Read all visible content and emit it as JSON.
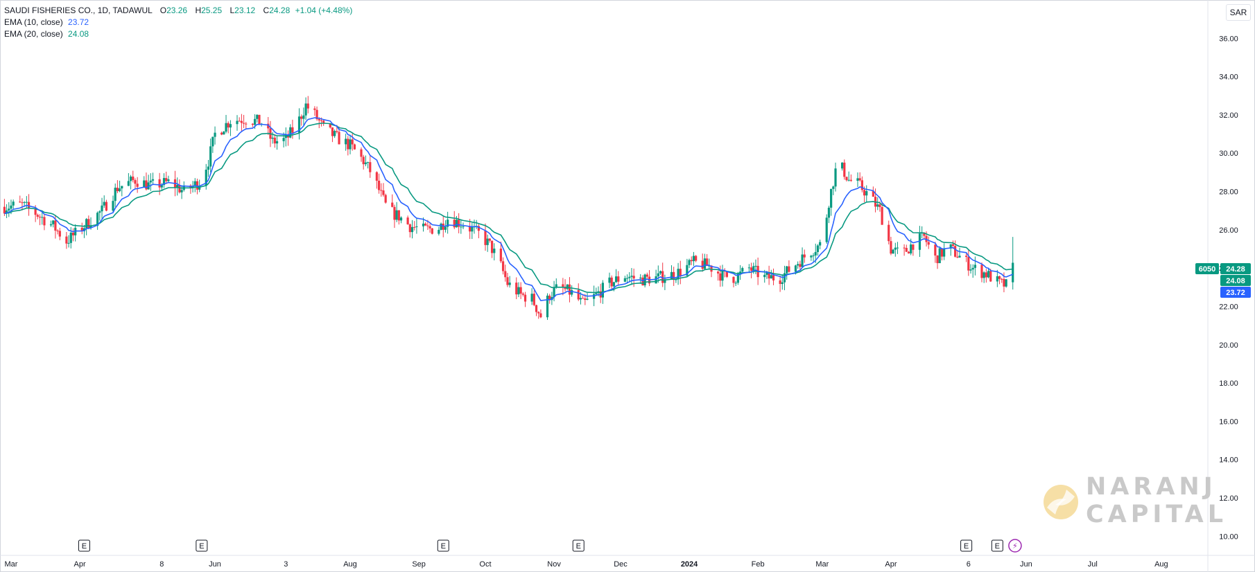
{
  "legend": {
    "symbol": "SAUDI FISHERIES CO., 1D, TADAWUL",
    "o_label": "O",
    "o_value": "23.26",
    "h_label": "H",
    "h_value": "25.25",
    "l_label": "L",
    "l_value": "23.12",
    "c_label": "C",
    "c_value": "24.28",
    "change": "+1.04 (+4.48%)",
    "ema10_label": "EMA (10, close)",
    "ema10_value": "23.72",
    "ema20_label": "EMA (20, close)",
    "ema20_value": "24.08"
  },
  "currency": "SAR",
  "price_badges": {
    "symbol_code": "6050",
    "close": "24.28",
    "ema20": "24.08",
    "ema10": "23.72"
  },
  "watermark": {
    "line1": "NARANJ",
    "line2": "CAPITAL"
  },
  "colors": {
    "up": "#089981",
    "down": "#f23645",
    "ema10": "#2962ff",
    "ema20": "#089981",
    "flash": "#9c27b0"
  },
  "chart_data": {
    "type": "candlestick",
    "series": [
      {
        "name": "EMA (10, close)"
      },
      {
        "name": "EMA (20, close)"
      }
    ],
    "ylim": [
      9,
      38
    ],
    "y_ticks": [
      "10.00",
      "12.00",
      "14.00",
      "16.00",
      "18.00",
      "20.00",
      "22.00",
      "24.00",
      "26.00",
      "28.00",
      "30.00",
      "32.00",
      "34.00",
      "36.00"
    ],
    "x_ticks": [
      "Mar",
      "Apr",
      "8",
      "Jun",
      "3",
      "Aug",
      "Sep",
      "Oct",
      "Nov",
      "Dec",
      "2024",
      "Feb",
      "Mar",
      "Apr",
      "6",
      "Jun",
      "Jul",
      "Aug"
    ],
    "x_tick_dates": [
      "2023-03-01",
      "2023-04-01",
      "2023-05-08",
      "2023-06-01",
      "2023-07-03",
      "2023-08-01",
      "2023-09-01",
      "2023-10-01",
      "2023-11-01",
      "2023-12-01",
      "2024-01-01",
      "2024-02-01",
      "2024-03-01",
      "2024-04-01",
      "2024-05-06",
      "2024-06-01",
      "2024-07-01",
      "2024-08-01"
    ],
    "x_range": [
      "2023-02-24",
      "2024-08-22"
    ],
    "earnings_markers": [
      {
        "date": "2023-04-03",
        "label": "E"
      },
      {
        "date": "2023-05-26",
        "label": "E"
      },
      {
        "date": "2023-09-12",
        "label": "E"
      },
      {
        "date": "2023-11-12",
        "label": "E"
      },
      {
        "date": "2024-05-05",
        "label": "E"
      },
      {
        "date": "2024-05-19",
        "label": "E"
      }
    ],
    "dividend_marker": {
      "date": "2024-05-27",
      "label": "⚡"
    },
    "price_path": [
      [
        "2023-02-26",
        27.2
      ],
      [
        "2023-03-06",
        27.3
      ],
      [
        "2023-03-13",
        26.8
      ],
      [
        "2023-03-20",
        26.2
      ],
      [
        "2023-03-26",
        25.4
      ],
      [
        "2023-04-03",
        26.2
      ],
      [
        "2023-04-11",
        27.0
      ],
      [
        "2023-04-18",
        28.2
      ],
      [
        "2023-04-26",
        28.6
      ],
      [
        "2023-05-03",
        28.3
      ],
      [
        "2023-05-12",
        28.5
      ],
      [
        "2023-05-18",
        28.0
      ],
      [
        "2023-05-25",
        28.5
      ],
      [
        "2023-05-29",
        29.6
      ],
      [
        "2023-06-01",
        31.0
      ],
      [
        "2023-06-08",
        31.7
      ],
      [
        "2023-06-15",
        31.8
      ],
      [
        "2023-06-22",
        31.6
      ],
      [
        "2023-06-27",
        30.6
      ],
      [
        "2023-07-03",
        30.7
      ],
      [
        "2023-07-08",
        31.5
      ],
      [
        "2023-07-12",
        32.5
      ],
      [
        "2023-07-16",
        32.0
      ],
      [
        "2023-07-20",
        31.3
      ],
      [
        "2023-07-26",
        30.8
      ],
      [
        "2023-08-01",
        30.4
      ],
      [
        "2023-08-07",
        29.6
      ],
      [
        "2023-08-11",
        28.9
      ],
      [
        "2023-08-15",
        27.8
      ],
      [
        "2023-08-18",
        27.0
      ],
      [
        "2023-08-23",
        26.7
      ],
      [
        "2023-08-28",
        26.2
      ],
      [
        "2023-09-03",
        26.0
      ],
      [
        "2023-09-10",
        26.1
      ],
      [
        "2023-09-14",
        26.6
      ],
      [
        "2023-09-21",
        26.3
      ],
      [
        "2023-09-28",
        25.8
      ],
      [
        "2023-10-03",
        25.2
      ],
      [
        "2023-10-07",
        24.4
      ],
      [
        "2023-10-11",
        23.2
      ],
      [
        "2023-10-17",
        22.6
      ],
      [
        "2023-10-22",
        22.4
      ],
      [
        "2023-10-26",
        21.5
      ],
      [
        "2023-10-30",
        22.6
      ],
      [
        "2023-11-03",
        23.0
      ],
      [
        "2023-11-09",
        22.7
      ],
      [
        "2023-11-14",
        22.1
      ],
      [
        "2023-11-19",
        22.5
      ],
      [
        "2023-11-26",
        23.2
      ],
      [
        "2023-12-03",
        23.6
      ],
      [
        "2023-12-10",
        23.4
      ],
      [
        "2023-12-18",
        23.5
      ],
      [
        "2023-12-26",
        23.7
      ],
      [
        "2024-01-03",
        24.3
      ],
      [
        "2024-01-10",
        24.1
      ],
      [
        "2024-01-16",
        23.6
      ],
      [
        "2024-01-22",
        23.5
      ],
      [
        "2024-01-28",
        24.0
      ],
      [
        "2024-02-04",
        23.5
      ],
      [
        "2024-02-11",
        23.5
      ],
      [
        "2024-02-18",
        24.2
      ],
      [
        "2024-02-25",
        24.9
      ],
      [
        "2024-03-01",
        25.3
      ],
      [
        "2024-03-04",
        27.5
      ],
      [
        "2024-03-08",
        29.6
      ],
      [
        "2024-03-13",
        28.6
      ],
      [
        "2024-03-17",
        28.4
      ],
      [
        "2024-03-22",
        27.8
      ],
      [
        "2024-03-27",
        27.0
      ],
      [
        "2024-04-01",
        25.0
      ],
      [
        "2024-04-06",
        24.7
      ],
      [
        "2024-04-11",
        25.3
      ],
      [
        "2024-04-16",
        25.6
      ],
      [
        "2024-04-21",
        24.5
      ],
      [
        "2024-04-27",
        25.1
      ],
      [
        "2024-05-02",
        24.6
      ],
      [
        "2024-05-08",
        24.0
      ],
      [
        "2024-05-14",
        23.7
      ],
      [
        "2024-05-20",
        23.2
      ],
      [
        "2024-05-23",
        23.1
      ],
      [
        "2024-05-26",
        24.28
      ]
    ]
  }
}
